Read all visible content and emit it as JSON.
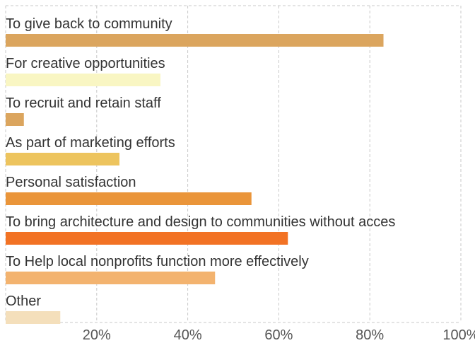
{
  "chart_data": {
    "type": "bar",
    "orientation": "horizontal",
    "categories": [
      "To give back to community",
      "For creative opportunities",
      "To recruit and retain staff",
      "As part of marketing efforts",
      "Personal satisfaction",
      "To bring architecture and design to communities without acces",
      "To Help local nonprofits function more effectively",
      "Other"
    ],
    "values": [
      83,
      34,
      4,
      25,
      54,
      62,
      46,
      12
    ],
    "bar_colors": [
      "#dba55e",
      "#f9f6c3",
      "#dba55e",
      "#edc45e",
      "#ea953a",
      "#f27224",
      "#f3b36f",
      "#f4dfbb"
    ],
    "xlim": [
      0,
      100
    ],
    "x_ticks": [
      20,
      40,
      60,
      80,
      100
    ],
    "x_tick_labels": [
      "20%",
      "40%",
      "60%",
      "80%",
      "100%"
    ],
    "grid": true,
    "title": "",
    "xlabel": "",
    "ylabel": ""
  }
}
